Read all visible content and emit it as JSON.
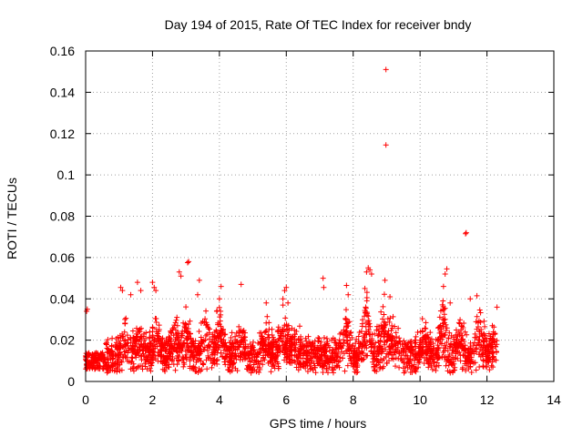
{
  "chart_data": {
    "type": "scatter",
    "title": "Day 194 of 2015, Rate Of TEC Index for receiver bndy",
    "xlabel": "GPS time / hours",
    "ylabel": "ROTI / TECUs",
    "xlim": [
      0,
      14
    ],
    "ylim": [
      0,
      0.16
    ],
    "x_ticks": [
      0,
      2,
      4,
      6,
      8,
      10,
      12,
      14
    ],
    "x_tick_labels": [
      "0",
      "2",
      "4",
      "6",
      "8",
      "10",
      "12",
      "14"
    ],
    "y_ticks": [
      0,
      0.02,
      0.04,
      0.06,
      0.08,
      0.1,
      0.12,
      0.14,
      0.16
    ],
    "y_tick_labels": [
      "0",
      "0.02",
      "0.04",
      "0.06",
      "0.08",
      "0.1",
      "0.12",
      "0.14",
      "0.16"
    ],
    "grid": true,
    "marker": "plus",
    "color": "#ff0000",
    "series": [
      {
        "name": "ROTI",
        "points": [
          [
            8.98,
            0.151
          ],
          [
            8.98,
            0.1145
          ],
          [
            11.38,
            0.072
          ],
          [
            11.36,
            0.0715
          ],
          [
            3.08,
            0.058
          ],
          [
            3.05,
            0.0575
          ],
          [
            8.45,
            0.055
          ],
          [
            8.5,
            0.054
          ],
          [
            8.4,
            0.053
          ],
          [
            8.55,
            0.052
          ],
          [
            10.8,
            0.0545
          ],
          [
            10.75,
            0.052
          ],
          [
            2.8,
            0.053
          ],
          [
            2.85,
            0.051
          ],
          [
            2.0,
            0.048
          ],
          [
            1.55,
            0.048
          ],
          [
            3.4,
            0.049
          ],
          [
            7.1,
            0.05
          ],
          [
            7.12,
            0.0455
          ],
          [
            8.95,
            0.049
          ],
          [
            1.05,
            0.0455
          ],
          [
            1.1,
            0.044
          ],
          [
            4.05,
            0.046
          ],
          [
            4.65,
            0.047
          ],
          [
            6.0,
            0.0455
          ],
          [
            5.95,
            0.044
          ],
          [
            7.8,
            0.0465
          ],
          [
            11.7,
            0.0415
          ],
          [
            11.5,
            0.04
          ],
          [
            10.7,
            0.046
          ],
          [
            0.05,
            0.035
          ],
          [
            0.03,
            0.034
          ],
          [
            1.35,
            0.042
          ],
          [
            1.65,
            0.044
          ],
          [
            2.05,
            0.0455
          ],
          [
            2.1,
            0.044
          ],
          [
            3.35,
            0.042
          ],
          [
            4.0,
            0.04
          ],
          [
            5.4,
            0.038
          ],
          [
            5.9,
            0.04
          ],
          [
            6.05,
            0.038
          ],
          [
            7.85,
            0.042
          ],
          [
            8.35,
            0.045
          ],
          [
            9.1,
            0.041
          ],
          [
            10.9,
            0.038
          ],
          [
            12.3,
            0.036
          ]
        ]
      }
    ]
  }
}
